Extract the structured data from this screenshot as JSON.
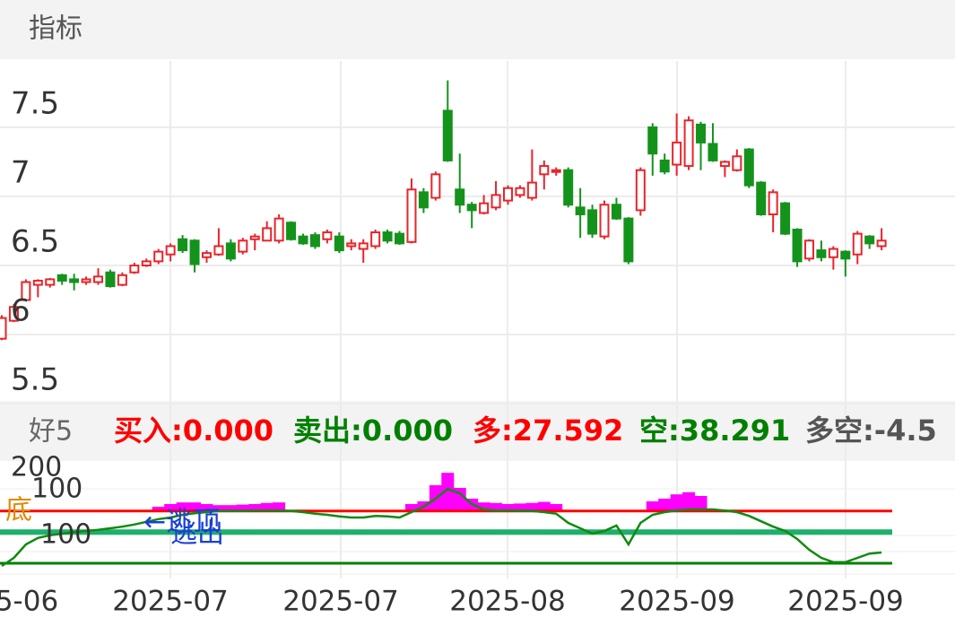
{
  "header": {
    "title": "指标"
  },
  "chart_data": [
    {
      "type": "candlestick",
      "open": [
        5.97,
        6.1,
        6.25,
        6.36,
        6.36,
        6.43,
        6.4,
        6.38,
        6.38,
        6.45,
        6.36,
        6.45,
        6.5,
        6.53,
        6.58,
        6.69,
        6.68,
        6.56,
        6.58,
        6.66,
        6.6,
        6.69,
        6.68,
        6.68,
        6.81,
        6.71,
        6.72,
        6.69,
        6.71,
        6.64,
        6.62,
        6.64,
        6.74,
        6.73,
        6.67,
        7.03,
        6.99,
        7.62,
        7.05,
        6.94,
        6.88,
        6.92,
        6.97,
        7.01,
        6.99,
        7.16,
        7.18,
        7.19,
        6.92,
        6.9,
        6.71,
        6.94,
        6.84,
        6.9,
        7.5,
        7.26,
        7.23,
        7.22,
        7.52,
        7.38,
        7.22,
        7.19,
        7.34,
        7.1,
        6.87,
        6.95,
        6.76,
        6.55,
        6.61,
        6.56,
        6.6,
        6.58,
        6.71,
        6.64
      ],
      "high": [
        6.14,
        6.22,
        6.4,
        6.4,
        6.41,
        6.44,
        6.44,
        6.42,
        6.48,
        6.47,
        6.45,
        6.52,
        6.55,
        6.62,
        6.66,
        6.72,
        6.69,
        6.61,
        6.77,
        6.69,
        6.7,
        6.73,
        6.82,
        6.87,
        6.82,
        6.73,
        6.74,
        6.76,
        6.74,
        6.69,
        6.69,
        6.76,
        6.76,
        6.75,
        7.13,
        7.06,
        7.18,
        7.84,
        7.31,
        6.96,
        7.01,
        7.11,
        7.08,
        7.08,
        7.34,
        7.26,
        7.21,
        7.21,
        7.06,
        6.94,
        6.97,
        6.99,
        6.85,
        7.21,
        7.53,
        7.31,
        7.6,
        7.58,
        7.54,
        7.53,
        7.26,
        7.34,
        7.35,
        7.11,
        7.05,
        6.96,
        6.77,
        6.69,
        6.68,
        6.64,
        6.61,
        6.75,
        6.72,
        6.77
      ],
      "low": [
        5.96,
        6.09,
        6.24,
        6.27,
        6.34,
        6.36,
        6.32,
        6.36,
        6.36,
        6.34,
        6.35,
        6.44,
        6.49,
        6.51,
        6.53,
        6.59,
        6.45,
        6.52,
        6.57,
        6.53,
        6.58,
        6.61,
        6.68,
        6.66,
        6.68,
        6.65,
        6.62,
        6.66,
        6.59,
        6.61,
        6.52,
        6.62,
        6.66,
        6.65,
        6.66,
        6.88,
        6.97,
        7.25,
        6.88,
        6.77,
        6.87,
        6.9,
        6.94,
        6.99,
        6.97,
        7.05,
        7.15,
        6.92,
        6.7,
        6.7,
        6.69,
        6.83,
        6.51,
        6.86,
        7.15,
        7.16,
        7.15,
        7.19,
        7.19,
        7.25,
        7.14,
        7.18,
        7.06,
        6.86,
        6.74,
        6.72,
        6.49,
        6.53,
        6.53,
        6.47,
        6.42,
        6.51,
        6.62,
        6.61
      ],
      "close": [
        6.12,
        6.2,
        6.38,
        6.39,
        6.4,
        6.39,
        6.38,
        6.4,
        6.42,
        6.35,
        6.43,
        6.5,
        6.53,
        6.6,
        6.64,
        6.61,
        6.51,
        6.59,
        6.64,
        6.55,
        6.68,
        6.71,
        6.77,
        6.84,
        6.69,
        6.66,
        6.64,
        6.74,
        6.61,
        6.66,
        6.66,
        6.74,
        6.68,
        6.66,
        7.05,
        6.92,
        7.16,
        7.26,
        6.94,
        6.9,
        6.95,
        7.01,
        7.06,
        7.06,
        7.1,
        7.22,
        7.19,
        6.94,
        6.87,
        6.73,
        6.94,
        6.84,
        6.53,
        7.19,
        7.31,
        7.18,
        7.39,
        7.55,
        7.39,
        7.26,
        7.25,
        7.29,
        7.08,
        6.87,
        7.03,
        6.73,
        6.53,
        6.68,
        6.56,
        6.62,
        6.55,
        6.73,
        6.66,
        6.68
      ],
      "up_color": "#e8242b",
      "down_color": "#14931c",
      "ylim": [
        5.52,
        7.98
      ],
      "yticks": [
        5.5,
        6,
        6.5,
        7,
        7.5
      ],
      "grid": true,
      "x_labels": [
        "5-06",
        "2025-07",
        "2025-07",
        "2025-08",
        "2025-09",
        "2025-09"
      ]
    },
    {
      "type": "indicator",
      "name": "好5",
      "readouts": [
        {
          "label": "买入:0.000",
          "color": "#ff0000"
        },
        {
          "label": "卖出:0.000",
          "color": "#008000"
        },
        {
          "label": "多:27.592",
          "color": "#ff0000"
        },
        {
          "label": "空:38.291",
          "color": "#008000"
        },
        {
          "label": "多空:-4.5",
          "color": "#555555"
        }
      ],
      "overlay_labels": [
        {
          "label": "200",
          "color": "#333333"
        },
        {
          "label": "100",
          "color": "#333333"
        },
        {
          "label": "100",
          "color": "#333333"
        },
        {
          "label": "底",
          "color": "#e08a00"
        },
        {
          "label": "←逃顶",
          "color": "#1a3fd6"
        },
        {
          "label": "逃出",
          "color": "#1a3fd6"
        }
      ],
      "ylim": [
        0,
        200
      ],
      "levels": [
        {
          "value": 117,
          "color": "#ff0000"
        },
        {
          "value": 78,
          "color": "#1db06a"
        },
        {
          "value": 20,
          "color": "#008000"
        }
      ],
      "series": [
        {
          "type": "bar",
          "color": "#ff00ff",
          "values": [
            null,
            null,
            null,
            null,
            null,
            null,
            null,
            null,
            null,
            null,
            null,
            null,
            null,
            125,
            130,
            133,
            133,
            130,
            128,
            128,
            129,
            130,
            132,
            133,
            null,
            null,
            null,
            null,
            null,
            null,
            null,
            null,
            null,
            null,
            130,
            135,
            165,
            188,
            160,
            140,
            133,
            132,
            130,
            131,
            132,
            134,
            130,
            null,
            null,
            null,
            null,
            null,
            null,
            null,
            135,
            140,
            148,
            152,
            145,
            null,
            null,
            null,
            null,
            null,
            null,
            null,
            null,
            null,
            null,
            null,
            null,
            null,
            null,
            null
          ]
        },
        {
          "type": "line",
          "color": "#108a10",
          "values": [
            15,
            30,
            55,
            67,
            72,
            75,
            78,
            80,
            82,
            85,
            88,
            92,
            97,
            102,
            105,
            110,
            113,
            115,
            117,
            117,
            117,
            118,
            118,
            118,
            117,
            115,
            112,
            110,
            107,
            105,
            105,
            108,
            107,
            105,
            115,
            125,
            140,
            158,
            150,
            130,
            120,
            118,
            118,
            118,
            117,
            115,
            112,
            95,
            85,
            75,
            80,
            90,
            55,
            95,
            110,
            115,
            118,
            120,
            120,
            120,
            118,
            115,
            108,
            98,
            88,
            80,
            65,
            45,
            30,
            22,
            22,
            30,
            38,
            40
          ]
        }
      ]
    }
  ]
}
